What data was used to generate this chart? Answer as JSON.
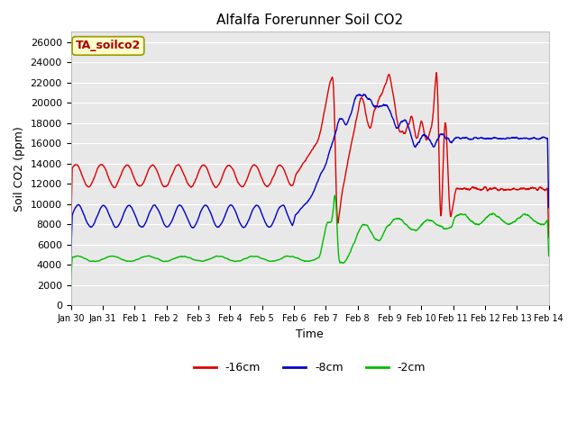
{
  "title": "Alfalfa Forerunner Soil CO2",
  "xlabel": "Time",
  "ylabel": "Soil CO2 (ppm)",
  "ylim": [
    0,
    27000
  ],
  "yticks": [
    0,
    2000,
    4000,
    6000,
    8000,
    10000,
    12000,
    14000,
    16000,
    18000,
    20000,
    22000,
    24000,
    26000
  ],
  "x_labels": [
    "Jan 30",
    "Jan 31",
    "Feb 1",
    "Feb 2",
    "Feb 3",
    "Feb 4",
    "Feb 5",
    "Feb 6",
    "Feb 7",
    "Feb 8",
    "Feb 9",
    "Feb 10",
    "Feb 11",
    "Feb 12",
    "Feb 13",
    "Feb 14"
  ],
  "colors": {
    "red": "#dd0000",
    "blue": "#0000cc",
    "green": "#00bb00",
    "plot_bg": "#e8e8e8",
    "fig_bg": "#ffffff",
    "grid": "#ffffff",
    "annotation_bg": "#ffffcc",
    "annotation_border": "#999900",
    "annotation_text": "#aa0000"
  },
  "annotation_text": "TA_soilco2",
  "legend_labels": [
    "-16cm",
    "-8cm",
    "-2cm"
  ]
}
